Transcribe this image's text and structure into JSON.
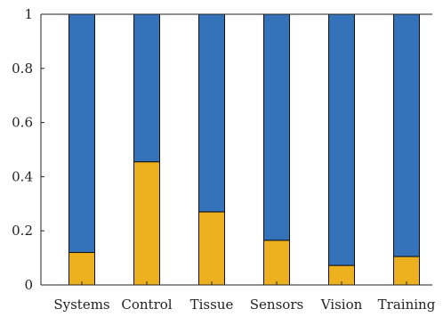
{
  "chart_data": {
    "type": "bar",
    "stacked": true,
    "title": "",
    "xlabel": "",
    "ylabel": "",
    "ylim": [
      0,
      1
    ],
    "yticks": [
      0,
      0.2,
      0.4,
      0.6,
      0.8,
      1
    ],
    "ytick_labels": [
      "0",
      "0.2",
      "0.4",
      "0.6",
      "0.8",
      "1"
    ],
    "grid": false,
    "categories": [
      "Systems",
      "Control",
      "Tissue",
      "Sensors",
      "Vision",
      "Training"
    ],
    "series": [
      {
        "color": "#EDB120",
        "values": [
          0.12,
          0.455,
          0.27,
          0.165,
          0.072,
          0.105
        ]
      },
      {
        "color": "#3473BA",
        "values": [
          0.88,
          0.545,
          0.73,
          0.835,
          0.928,
          0.895
        ]
      }
    ]
  }
}
